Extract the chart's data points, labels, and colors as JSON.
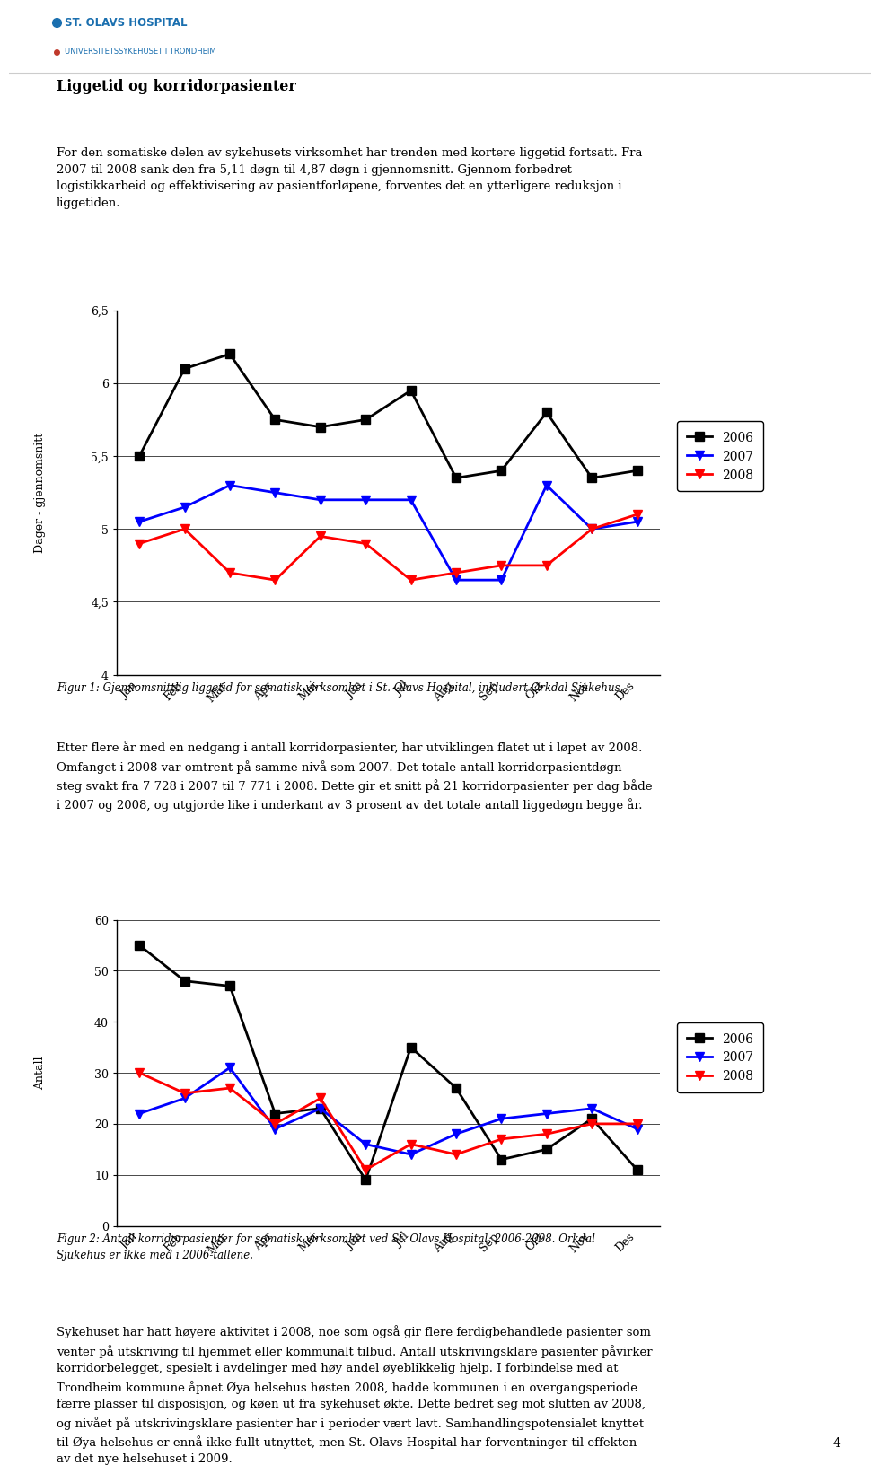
{
  "months": [
    "Jan",
    "Feb",
    "Mar",
    "Apr",
    "Mai",
    "Jun",
    "Jul",
    "Aug",
    "Sep",
    "Okt",
    "Nov",
    "Des"
  ],
  "chart1": {
    "ylabel": "Dager - gjennomsnitt",
    "ylim": [
      4.0,
      6.5
    ],
    "series2006": [
      5.5,
      6.1,
      6.2,
      5.75,
      5.7,
      5.75,
      5.95,
      5.35,
      5.4,
      5.8,
      5.35,
      5.4
    ],
    "series2007": [
      5.05,
      5.15,
      5.3,
      5.25,
      5.2,
      5.2,
      5.2,
      4.65,
      4.65,
      5.3,
      5.0,
      5.05
    ],
    "series2008": [
      4.9,
      5.0,
      4.7,
      4.65,
      4.95,
      4.9,
      4.65,
      4.7,
      4.75,
      4.75,
      5.0,
      5.1
    ],
    "caption": "Figur 1: Gjennomsnittlig liggetid for somatisk virksomhet i St. Olavs Hospital, inkludert Orkdal Sjukehus."
  },
  "chart2": {
    "ylabel": "Antall",
    "ylim": [
      0,
      60
    ],
    "series2006": [
      55,
      48,
      47,
      22,
      23,
      9,
      35,
      27,
      13,
      15,
      21,
      11
    ],
    "series2007": [
      22,
      25,
      31,
      19,
      23,
      16,
      14,
      18,
      21,
      22,
      23,
      19
    ],
    "series2008": [
      30,
      26,
      27,
      20,
      25,
      11,
      16,
      14,
      17,
      18,
      20,
      20
    ],
    "caption": "Figur 2: Antall korridorpasienter for somatisk virksomhet ved St. Olavs Hospital, 2006-2008. Orkdal\nSjukehus er ikke med i 2006-tallene."
  },
  "colors": {
    "2006": "#000000",
    "2007": "#0000ff",
    "2008": "#ff0000"
  },
  "header_title": "Liggetid og korridorpasienter",
  "header_text": "For den somatiske delen av sykehusets virksomhet har trenden med kortere liggetid fortsatt. Fra\n2007 til 2008 sank den fra 5,11 døgn til 4,87 døgn i gjennomsnitt. Gjennom forbedret\nlogistikkarbeid og effektivisering av pasientforløpene, forventes det en ytterligere reduksjon i\nliggetiden.",
  "middle_text": "Etter flere år med en nedgang i antall korridorpasienter, har utviklingen flatet ut i løpet av 2008.\nOmfanget i 2008 var omtrent på samme nivå som 2007. Det totale antall korridorpasientdøgn\nsteg svakt fra 7 728 i 2007 til 7 771 i 2008. Dette gir et snitt på 21 korridorpasienter per dag både\ni 2007 og 2008, og utgjorde like i underkant av 3 prosent av det totale antall liggedøgn begge år.",
  "footer_text": "Sykehuset har hatt høyere aktivitet i 2008, noe som også gir flere ferdigbehandlede pasienter som\nventer på utskriving til hjemmet eller kommunalt tilbud. Antall utskrivingsklare pasienter påvirker\nkorridorbelegget, spesielt i avdelinger med høy andel øyeblikkelig hjelp. I forbindelse med at\nTrondheim kommune åpnet Øya helsehus høsten 2008, hadde kommunen i en overgangsperiode\nfærre plasser til disposisjon, og køen ut fra sykehuset økte. Dette bedret seg mot slutten av 2008,\nog nivået på utskrivingsklare pasienter har i perioder vært lavt. Samhandlingspotensialet knyttet\ntil Øya helsehus er ennå ikke fullt utnyttet, men St. Olavs Hospital har forventninger til effekten\nav det nye helsehuset i 2009.",
  "page_number": "4",
  "bg_color": "#ffffff",
  "logo_text_main": "ST. OLAVS HOSPITAL",
  "logo_text_sub": "UNIVERSITETSSYKEHUSET I TRONDHEIM"
}
